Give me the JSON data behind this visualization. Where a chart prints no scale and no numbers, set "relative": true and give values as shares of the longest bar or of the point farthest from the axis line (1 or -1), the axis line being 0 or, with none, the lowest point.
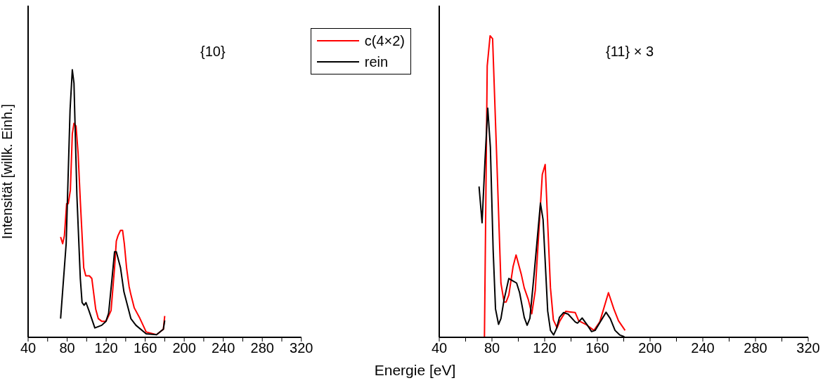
{
  "chart_data": [
    {
      "type": "line",
      "relative": true,
      "ylabel": "Intensität [willk. Einh.]",
      "xlabel": "Energie [eV]",
      "annotations": [
        "{10}"
      ],
      "legend": "top right",
      "tick_labels": "x",
      "xlim": [
        40,
        320
      ],
      "xticks": [
        40,
        {
          "value": 60,
          "label": null
        },
        80,
        {
          "value": 100,
          "label": null
        },
        120,
        {
          "value": 140,
          "label": null
        },
        160,
        {
          "value": 180,
          "label": null
        },
        200,
        {
          "value": 220,
          "label": null
        },
        240,
        {
          "value": 260,
          "label": null
        },
        280,
        {
          "value": 300,
          "label": null
        },
        320
      ],
      "series": [
        {
          "name": "c(4×2)",
          "color": "#ff0000",
          "x": [
            73.3,
            75.4,
            77.2,
            79.5,
            81.2,
            83.3,
            85.3,
            87,
            89.1,
            91.2,
            93.5,
            97,
            99.1,
            102.8,
            105.3,
            109.3,
            111.9,
            115.4,
            119.8,
            122.5,
            125,
            128.6,
            130.4,
            132.1,
            134.7,
            136.8,
            138.6,
            140.9,
            143.5,
            145.3,
            148.8,
            154,
            161,
            171.6,
            178.6,
            180
          ],
          "values": [
            0.375,
            0.35,
            0.38,
            0.5,
            0.5,
            0.55,
            0.76,
            0.8,
            0.79,
            0.69,
            0.51,
            0.26,
            0.23,
            0.23,
            0.22,
            0.105,
            0.07,
            0.06,
            0.06,
            0.08,
            0.1,
            0.26,
            0.36,
            0.38,
            0.4,
            0.4,
            0.35,
            0.26,
            0.19,
            0.16,
            0.11,
            0.075,
            0.02,
            0.01,
            0.03,
            0.08
          ]
        },
        {
          "name": "rein",
          "color": "#000000",
          "x": [
            73.3,
            79,
            83,
            85.3,
            87,
            90,
            93.5,
            95.3,
            97.4,
            99.3,
            102.3,
            108.4,
            115.4,
            119.8,
            122.5,
            126,
            128.6,
            130.4,
            134.7,
            138.2,
            145.3,
            150.5,
            161,
            171.6,
            178.6,
            180
          ],
          "values": [
            0.07,
            0.35,
            0.85,
            1,
            0.95,
            0.53,
            0.22,
            0.13,
            0.12,
            0.13,
            0.1,
            0.035,
            0.045,
            0.06,
            0.09,
            0.22,
            0.32,
            0.32,
            0.26,
            0.17,
            0.07,
            0.045,
            0.013,
            0.01,
            0.03,
            0.063
          ]
        }
      ]
    },
    {
      "type": "line",
      "relative": true,
      "annotations": [
        "{11} × 3"
      ],
      "tick_labels": "x",
      "xlim": [
        40,
        320
      ],
      "xticks": [
        40,
        {
          "value": 60,
          "label": null
        },
        80,
        {
          "value": 100,
          "label": null
        },
        120,
        {
          "value": 140,
          "label": null
        },
        160,
        {
          "value": 180,
          "label": null
        },
        200,
        {
          "value": 220,
          "label": null
        },
        240,
        {
          "value": 260,
          "label": null
        },
        280,
        {
          "value": 300,
          "label": null
        },
        320
      ],
      "series": [
        {
          "color": "#ff0000",
          "x": [
            70.2,
            74.3,
            76.4,
            78.6,
            80.5,
            83.9,
            86.8,
            89.2,
            90.7,
            92.8,
            96,
            98.3,
            102.2,
            104.5,
            107.6,
            110.2,
            112.9,
            118.2,
            120.4,
            124.4,
            126.6,
            129.4,
            131.6,
            136,
            139.6,
            143.2,
            145.8,
            151.2,
            157.4,
            161.8,
            168.4,
            172.5,
            176,
            181
          ],
          "values": [
            0,
            0,
            0.9,
            1,
            0.99,
            0.56,
            0.18,
            0.117,
            0.117,
            0.14,
            0.234,
            0.273,
            0.21,
            0.164,
            0.125,
            0.078,
            0.156,
            0.54,
            0.573,
            0.164,
            0.058,
            0.031,
            0.055,
            0.086,
            0.084,
            0.082,
            0.055,
            0.043,
            0.023,
            0.051,
            0.148,
            0.094,
            0.055,
            0.023
          ]
        },
        {
          "color": "#000000",
          "x": [
            70.2,
            72.5,
            74.7,
            76.8,
            78.8,
            80.9,
            82.7,
            85,
            86.8,
            89.2,
            92.8,
            96,
            98.7,
            101,
            104.5,
            106.7,
            108.8,
            112,
            116.8,
            118.8,
            122.3,
            124.4,
            126.8,
            128.9,
            131.2,
            134.3,
            137.8,
            143.2,
            144.9,
            148.5,
            152,
            155.6,
            158.3,
            162.7,
            166.6,
            169.8,
            173.4,
            176.9,
            180.5
          ],
          "values": [
            0.5,
            0.38,
            0.585,
            0.76,
            0.63,
            0.29,
            0.094,
            0.043,
            0.062,
            0.125,
            0.195,
            0.187,
            0.18,
            0.148,
            0.066,
            0.04,
            0.063,
            0.21,
            0.445,
            0.39,
            0.087,
            0.023,
            0.008,
            0.028,
            0.066,
            0.082,
            0.077,
            0.051,
            0.047,
            0.064,
            0.043,
            0.019,
            0.023,
            0.055,
            0.083,
            0.062,
            0.023,
            0.008,
            0.002
          ]
        }
      ]
    }
  ]
}
